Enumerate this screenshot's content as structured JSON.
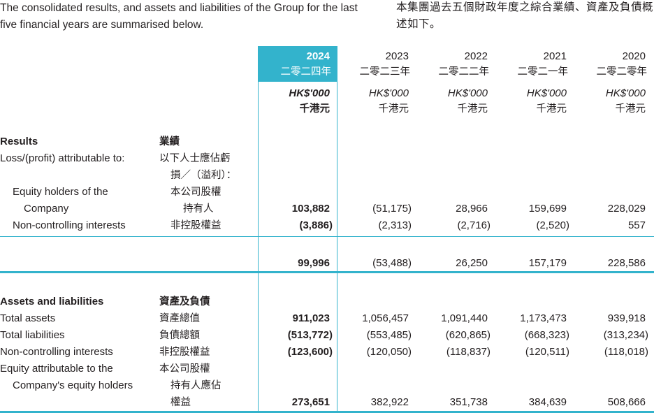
{
  "intro": {
    "en": "The consolidated results, and assets and liabilities of the Group for the last five financial years are summarised below.",
    "zh": "本集團過去五個財政年度之綜合業績、資產及負債概述如下。"
  },
  "columns": [
    {
      "year": "2024",
      "year_zh": "二零二四年",
      "unit": "HK$'000",
      "unit_zh": "千港元"
    },
    {
      "year": "2023",
      "year_zh": "二零二三年",
      "unit": "HK$'000",
      "unit_zh": "千港元"
    },
    {
      "year": "2022",
      "year_zh": "二零二二年",
      "unit": "HK$'000",
      "unit_zh": "千港元"
    },
    {
      "year": "2021",
      "year_zh": "二零二一年",
      "unit": "HK$'000",
      "unit_zh": "千港元"
    },
    {
      "year": "2020",
      "year_zh": "二零二零年",
      "unit": "HK$'000",
      "unit_zh": "千港元"
    }
  ],
  "results": {
    "heading": "Results",
    "heading_zh": "業績",
    "attrib_label": "Loss/(profit) attributable to:",
    "attrib_label_zh_1": "以下人士應佔虧",
    "attrib_label_zh_2": "損／（溢利）：",
    "equity_label_1": "Equity holders of the",
    "equity_label_2": "Company",
    "equity_label_zh_1": "本公司股權",
    "equity_label_zh_2": "持有人",
    "equity_values": [
      "103,882",
      "(51,175)",
      "28,966",
      "159,699",
      "228,029"
    ],
    "nci_label": "Non-controlling interests",
    "nci_label_zh": "非控股權益",
    "nci_values": [
      "(3,886)",
      "(2,313)",
      "(2,716)",
      "(2,520)",
      "557"
    ],
    "total_values": [
      "99,996",
      "(53,488)",
      "26,250",
      "157,179",
      "228,586"
    ]
  },
  "assets": {
    "heading": "Assets and liabilities",
    "heading_zh": "資產及負債",
    "total_assets_label": "Total assets",
    "total_assets_label_zh": "資產總值",
    "total_assets_values": [
      "911,023",
      "1,056,457",
      "1,091,440",
      "1,173,473",
      "939,918"
    ],
    "total_liab_label": "Total liabilities",
    "total_liab_label_zh": "負債總額",
    "total_liab_values": [
      "(513,772)",
      "(553,485)",
      "(620,865)",
      "(668,323)",
      "(313,234)"
    ],
    "nci_label": "Non-controlling interests",
    "nci_label_zh": "非控股權益",
    "nci_values": [
      "(123,600)",
      "(120,050)",
      "(118,837)",
      "(120,511)",
      "(118,018)"
    ],
    "equity_label_1": "Equity attributable to the",
    "equity_label_2": "Company's equity holders",
    "equity_label_zh_1": "本公司股權",
    "equity_label_zh_2": "持有人應佔",
    "equity_label_zh_3": "權益",
    "equity_values": [
      "273,651",
      "382,922",
      "351,738",
      "384,639",
      "508,666"
    ]
  },
  "colors": {
    "accent": "#33b3cc",
    "text": "#231f20"
  }
}
